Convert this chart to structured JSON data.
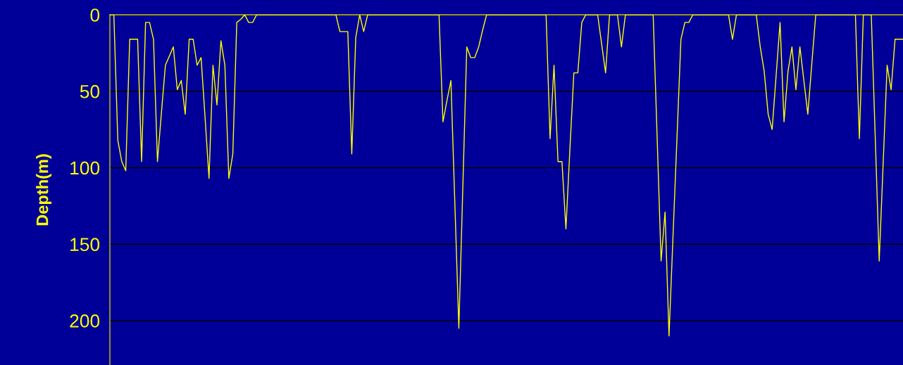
{
  "chart_data": {
    "type": "line",
    "ylabel": "Depth(m)",
    "color": "#ffff00",
    "categories": [
      null,
      null,
      null,
      null,
      null,
      null,
      null,
      null,
      null,
      null,
      null,
      null,
      null,
      null,
      null,
      null,
      null,
      null,
      null,
      null,
      null,
      null,
      null,
      null,
      null,
      null,
      null,
      null,
      null,
      null,
      null,
      null,
      null,
      null,
      null,
      null,
      null,
      null,
      null,
      null,
      null,
      null,
      null,
      null,
      null,
      null,
      null,
      null,
      null,
      null,
      null,
      null,
      null,
      null,
      null,
      null,
      null,
      null,
      null,
      null,
      null,
      null,
      null,
      null,
      null,
      null,
      null,
      null,
      null,
      null,
      null,
      null,
      null,
      null,
      null,
      null,
      null,
      null,
      null,
      null,
      null,
      null,
      null,
      null,
      null,
      null,
      null,
      null,
      null,
      null,
      null,
      null,
      null,
      null,
      null,
      null,
      null,
      null,
      null,
      null,
      null,
      null,
      null,
      null,
      null,
      null,
      null,
      null,
      null,
      null,
      null,
      null,
      null,
      null,
      null,
      null,
      null,
      null,
      null,
      null,
      null,
      null,
      null,
      null,
      null,
      null,
      null,
      null,
      null,
      null,
      null,
      null,
      null,
      null,
      null,
      null,
      null,
      null,
      null,
      null,
      null,
      null,
      null,
      null,
      null,
      null,
      null,
      null,
      null,
      null,
      null,
      null,
      null,
      null,
      null,
      null,
      null,
      null,
      null,
      null,
      null,
      null,
      null,
      null,
      null,
      null,
      null,
      null,
      null,
      null,
      null,
      null,
      null,
      null,
      null,
      null,
      null,
      null,
      null,
      null,
      null,
      null,
      null,
      null,
      null,
      null,
      null,
      null,
      null,
      null,
      null,
      null,
      null,
      null,
      null,
      null,
      null,
      null,
      null,
      null,
      null
    ],
    "values": [
      0,
      0,
      82,
      96,
      102,
      16,
      16,
      16,
      96,
      5,
      5,
      16,
      96,
      64,
      33,
      27,
      21,
      49,
      43,
      65,
      16,
      16,
      33,
      28,
      67,
      107,
      33,
      59,
      17,
      33,
      107,
      91,
      5,
      3,
      0,
      5,
      5,
      0,
      0,
      0,
      0,
      0,
      0,
      0,
      0,
      0,
      0,
      0,
      0,
      0,
      0,
      0,
      0,
      0,
      0,
      0,
      0,
      0,
      11,
      11,
      11,
      91,
      15,
      0,
      11,
      0,
      0,
      0,
      0,
      0,
      0,
      0,
      0,
      0,
      0,
      0,
      0,
      0,
      0,
      0,
      0,
      0,
      0,
      0,
      70,
      56,
      43,
      124,
      205,
      113,
      21,
      28,
      28,
      21,
      10,
      0,
      0,
      0,
      0,
      0,
      0,
      0,
      0,
      0,
      0,
      0,
      0,
      0,
      0,
      0,
      0,
      81,
      33,
      96,
      96,
      140,
      88,
      38,
      38,
      5,
      0,
      0,
      0,
      0,
      19,
      38,
      0,
      0,
      0,
      21,
      0,
      0,
      0,
      0,
      0,
      0,
      0,
      0,
      80,
      161,
      129,
      210,
      145,
      81,
      16,
      5,
      5,
      0,
      0,
      0,
      0,
      0,
      0,
      0,
      0,
      0,
      0,
      16,
      0,
      0,
      0,
      0,
      0,
      0,
      21,
      37,
      65,
      75,
      40,
      5,
      70,
      37,
      21,
      49,
      21,
      43,
      65,
      32,
      0,
      0,
      0,
      0,
      0,
      0,
      0,
      0,
      0,
      0,
      0,
      81,
      0,
      0,
      0,
      80,
      161,
      97,
      33,
      49,
      16,
      16,
      16
    ],
    "ylim": [
      229,
      0
    ],
    "yticks": [
      0,
      50,
      100,
      150,
      200
    ],
    "grid": "y"
  }
}
